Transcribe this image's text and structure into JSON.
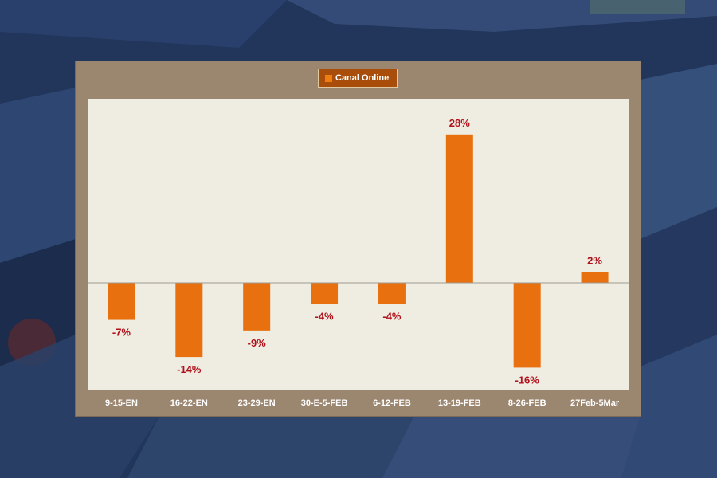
{
  "chart_data": {
    "type": "bar",
    "categories": [
      "9-15-EN",
      "16-22-EN",
      "23-29-EN",
      "30-E-5-FEB",
      "6-12-FEB",
      "13-19-FEB",
      "8-26-FEB",
      "27Feb-5Mar"
    ],
    "series": [
      {
        "name": "Canal Online",
        "values": [
          -7,
          -14,
          -9,
          -4,
          -4,
          28,
          -16,
          2
        ]
      }
    ],
    "data_labels": [
      "-7%",
      "-14%",
      "-9%",
      "-4%",
      "-4%",
      "28%",
      "-16%",
      "2%"
    ],
    "ylim": [
      -20,
      35
    ],
    "grid": false,
    "legend_position": "top-center",
    "colors": {
      "bar": "#e8700e",
      "label": "#b0111b",
      "plot_bg": "#efece2",
      "frame": "#9b8670",
      "legend_bg": "#a84e0a"
    }
  }
}
